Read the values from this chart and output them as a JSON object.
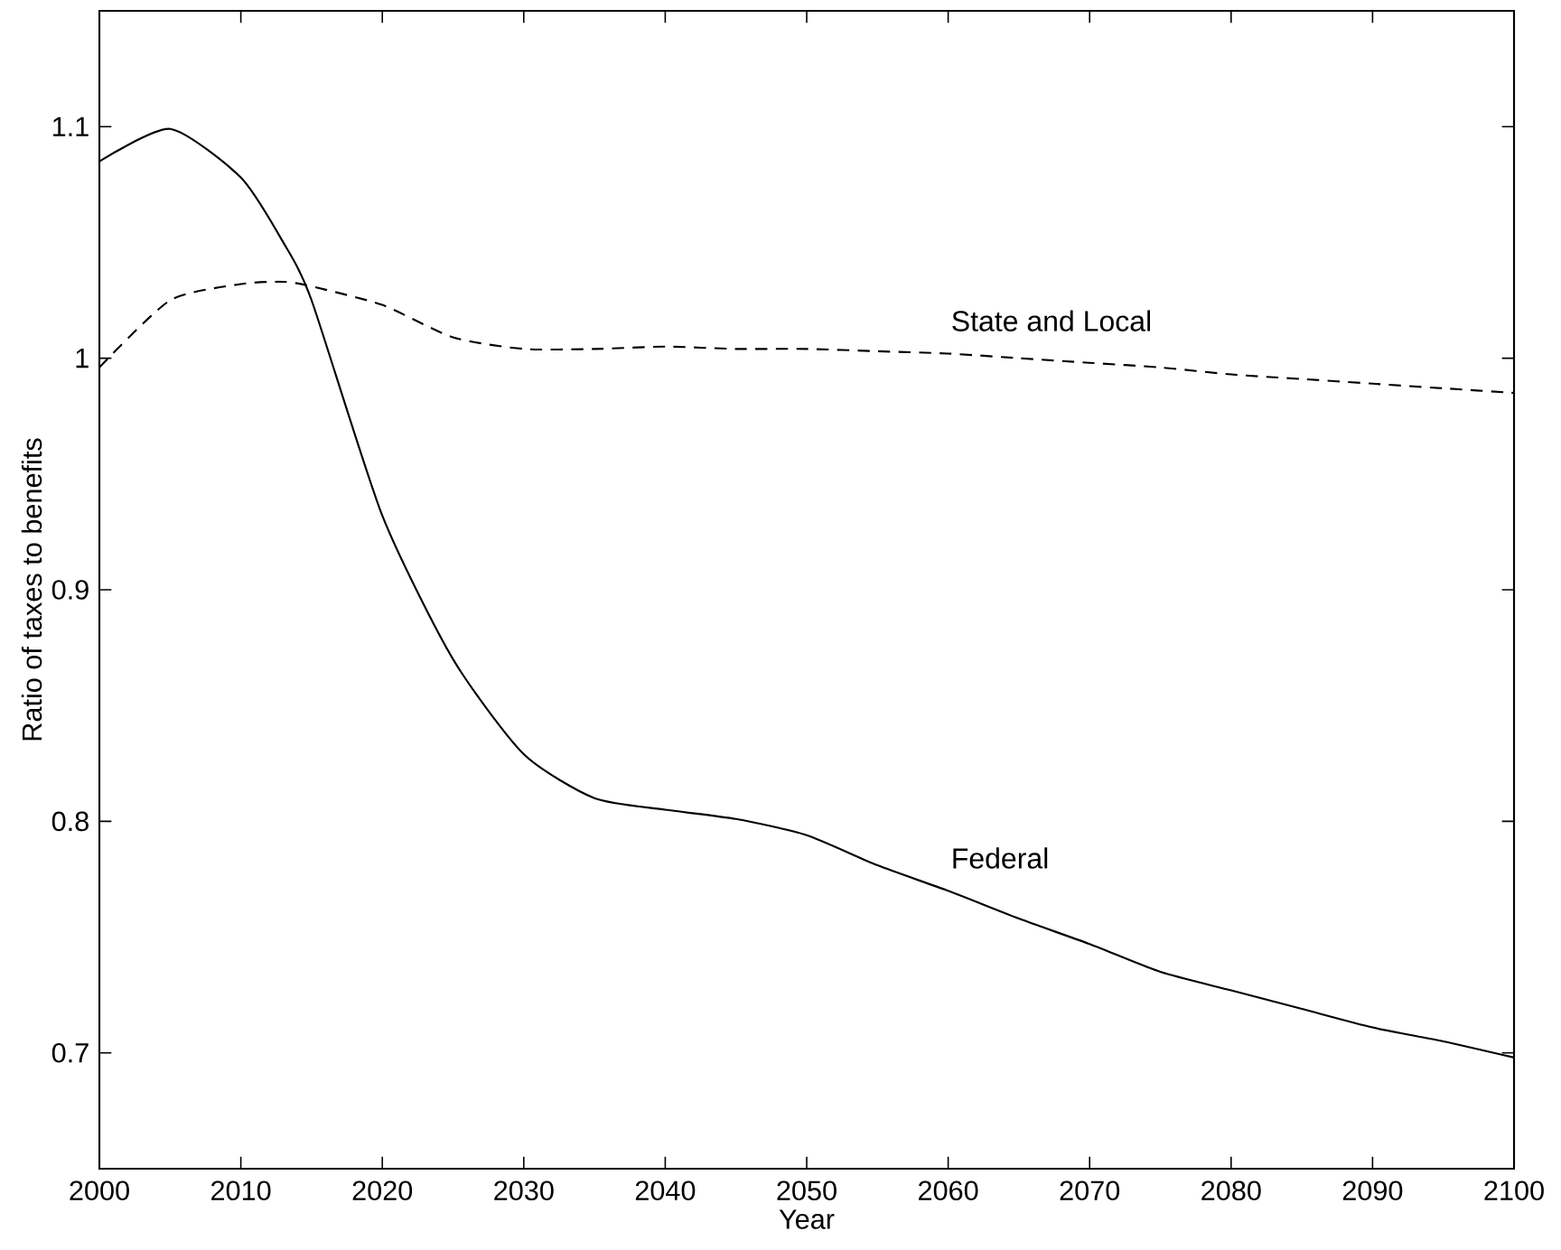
{
  "chart_data": {
    "type": "line",
    "xlabel": "Year",
    "ylabel": "Ratio of taxes to benefits",
    "x": [
      2000,
      2005,
      2010,
      2013,
      2015,
      2020,
      2025,
      2030,
      2035,
      2040,
      2045,
      2050,
      2055,
      2060,
      2065,
      2070,
      2075,
      2080,
      2085,
      2090,
      2095,
      2100
    ],
    "series": [
      {
        "name": "State and Local",
        "color": "#000000",
        "line_style": "dashed",
        "values": [
          0.996,
          1.025,
          1.032,
          1.033,
          1.031,
          1.023,
          1.009,
          1.004,
          1.004,
          1.005,
          1.004,
          1.004,
          1.003,
          1.002,
          1.0,
          0.998,
          0.996,
          0.993,
          0.991,
          0.989,
          0.987,
          0.985
        ]
      },
      {
        "name": "Federal",
        "color": "#000000",
        "line_style": "solid",
        "values": [
          1.085,
          1.099,
          1.078,
          1.05,
          1.025,
          0.932,
          0.87,
          0.829,
          0.81,
          0.805,
          0.801,
          0.794,
          0.781,
          0.77,
          0.758,
          0.747,
          0.735,
          0.727,
          0.719,
          0.711,
          0.705,
          0.698
        ]
      }
    ],
    "xlim": [
      2000,
      2100
    ],
    "ylim": [
      0.65,
      1.15
    ],
    "xticks": [
      2000,
      2010,
      2020,
      2030,
      2040,
      2050,
      2060,
      2070,
      2080,
      2090,
      2100
    ],
    "yticks": [
      0.7,
      0.8,
      0.9,
      1,
      1.1
    ],
    "grid": false,
    "legend": false,
    "marker": "none"
  }
}
